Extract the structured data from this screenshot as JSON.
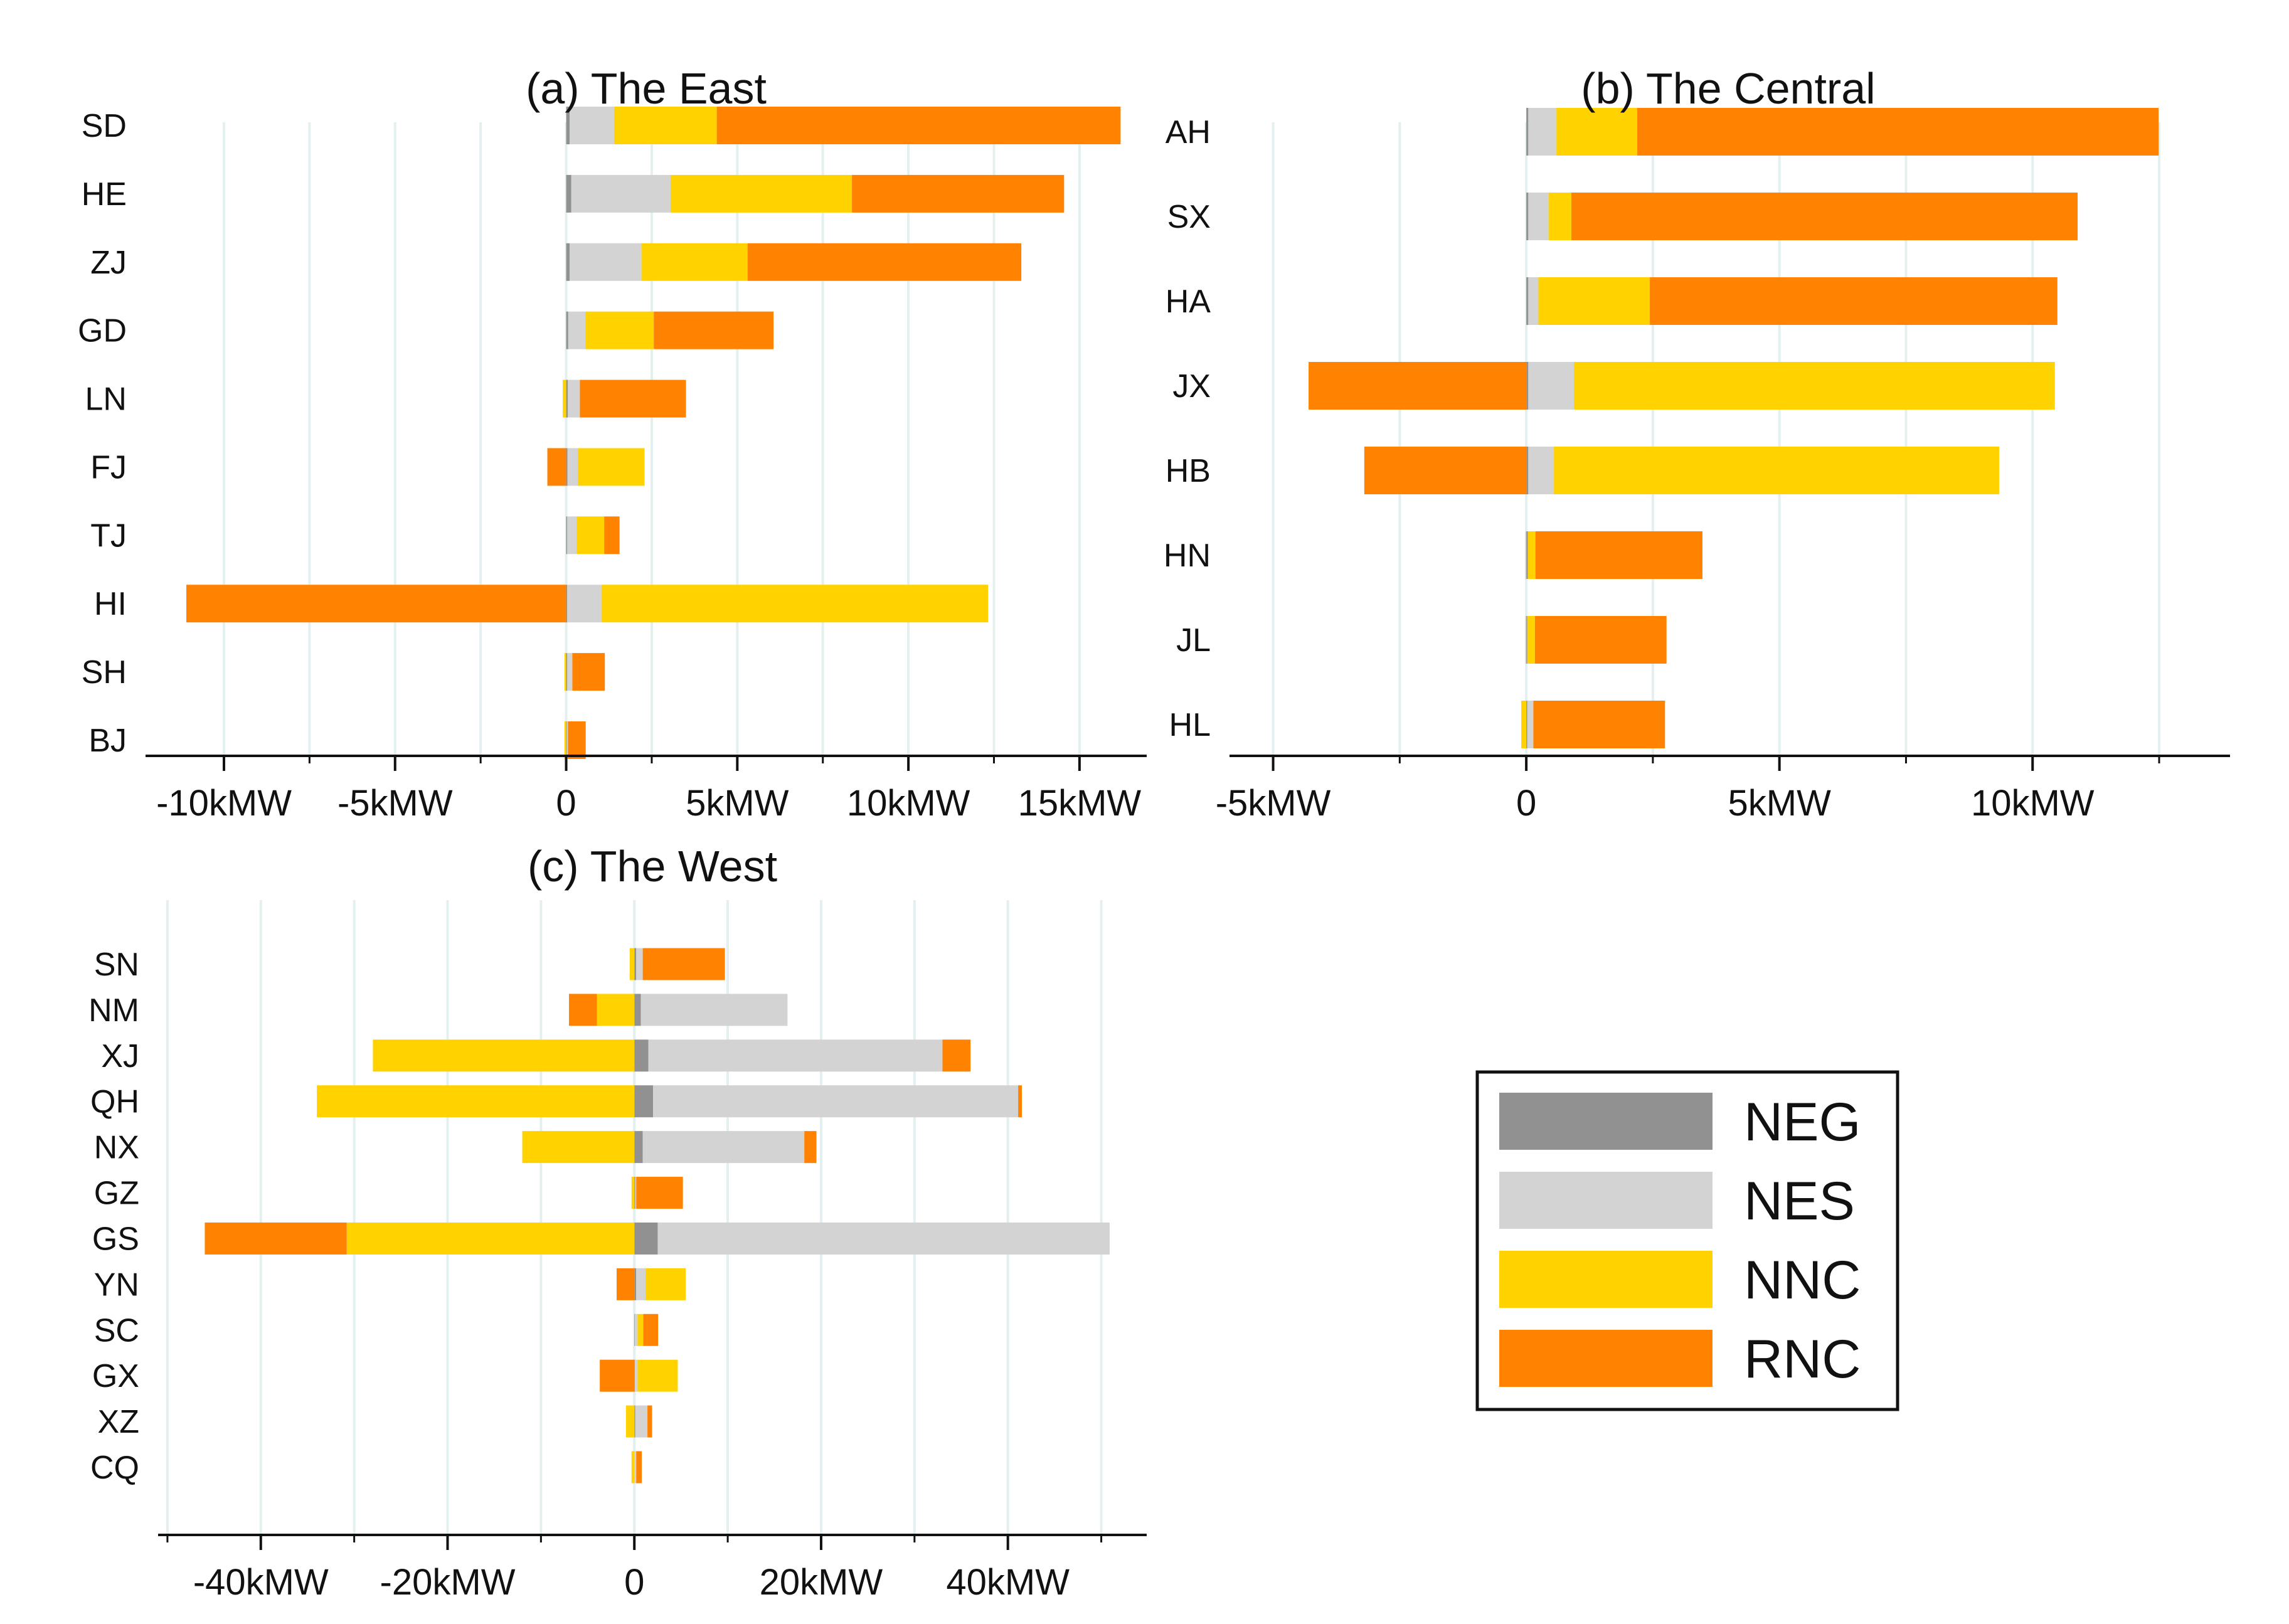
{
  "colors": {
    "NEG": "#919191",
    "NES": "#d3d3d3",
    "NNC": "#ffd200",
    "RNC": "#ff8300",
    "grid": "#e4efef",
    "axis": "#111111"
  },
  "legend": {
    "entries": [
      "NEG",
      "NES",
      "NNC",
      "RNC"
    ]
  },
  "chart_data": [
    {
      "type": "bar",
      "orientation": "horizontal",
      "stacked": true,
      "title": "(a) The East",
      "categories": [
        "SD",
        "HE",
        "ZJ",
        "GD",
        "LN",
        "FJ",
        "TJ",
        "HI",
        "SH",
        "BJ"
      ],
      "xlim": [
        -12200,
        17000
      ],
      "ticks": [
        -10000,
        -5000,
        0,
        5000,
        10000,
        15000
      ],
      "tick_labels": [
        "-10kMW",
        "-5kMW",
        "0",
        "5kMW",
        "10kMW",
        "15kMW"
      ],
      "series": [
        {
          "name": "NEG",
          "values": [
            100,
            150,
            100,
            60,
            50,
            40,
            30,
            30,
            30,
            20
          ]
        },
        {
          "name": "NES",
          "values": [
            1300,
            2900,
            2100,
            500,
            350,
            300,
            280,
            1000,
            150,
            30
          ]
        },
        {
          "name": "NNC",
          "values": [
            3000,
            5300,
            3100,
            2000,
            -100,
            1950,
            800,
            11300,
            -50,
            -50
          ]
        },
        {
          "name": "RNC",
          "values": [
            11800,
            6200,
            8000,
            3500,
            3100,
            -550,
            450,
            -11100,
            950,
            520
          ]
        }
      ]
    },
    {
      "type": "bar",
      "orientation": "horizontal",
      "stacked": true,
      "title": "(b) The Central",
      "categories": [
        "AH",
        "SX",
        "HA",
        "JX",
        "HB",
        "HN",
        "JL",
        "HL"
      ],
      "xlim": [
        -5800,
        13900
      ],
      "ticks": [
        -5000,
        0,
        5000,
        10000
      ],
      "tick_labels": [
        "-5kMW",
        "0",
        "5kMW",
        "10kMW"
      ],
      "series": [
        {
          "name": "NEG",
          "values": [
            40,
            40,
            40,
            40,
            40,
            30,
            20,
            20
          ]
        },
        {
          "name": "NES",
          "values": [
            550,
            400,
            200,
            900,
            500,
            -20,
            -20,
            120
          ]
        },
        {
          "name": "NNC",
          "values": [
            1600,
            450,
            2200,
            9500,
            8800,
            150,
            150,
            -100
          ]
        },
        {
          "name": "RNC",
          "values": [
            10300,
            10000,
            8050,
            -4300,
            -3200,
            3300,
            2600,
            2600
          ]
        }
      ]
    },
    {
      "type": "bar",
      "orientation": "horizontal",
      "stacked": true,
      "title": "(c) The West",
      "categories": [
        "SN",
        "NM",
        "XJ",
        "QH",
        "NX",
        "GZ",
        "GS",
        "YN",
        "SC",
        "GX",
        "XZ",
        "CQ"
      ],
      "xlim": [
        -50800,
        55000
      ],
      "ticks": [
        -40000,
        -20000,
        0,
        20000,
        40000
      ],
      "tick_labels": [
        "-40kMW",
        "-20kMW",
        "0",
        "20kMW",
        "40kMW"
      ],
      "series": [
        {
          "name": "NEG",
          "values": [
            200,
            700,
            1500,
            2000,
            900,
            100,
            2500,
            200,
            50,
            50,
            100,
            0
          ]
        },
        {
          "name": "NES",
          "values": [
            700,
            15700,
            31500,
            39100,
            17300,
            100,
            48400,
            1000,
            300,
            300,
            1300,
            200
          ]
        },
        {
          "name": "NNC",
          "values": [
            -500,
            -4000,
            -28000,
            -34000,
            -12000,
            -300,
            -30800,
            4300,
            600,
            4300,
            -900,
            -300
          ]
        },
        {
          "name": "RNC",
          "values": [
            8800,
            -3000,
            3000,
            400,
            1300,
            5000,
            -15200,
            -1900,
            1600,
            -3700,
            500,
            600
          ]
        }
      ]
    }
  ]
}
